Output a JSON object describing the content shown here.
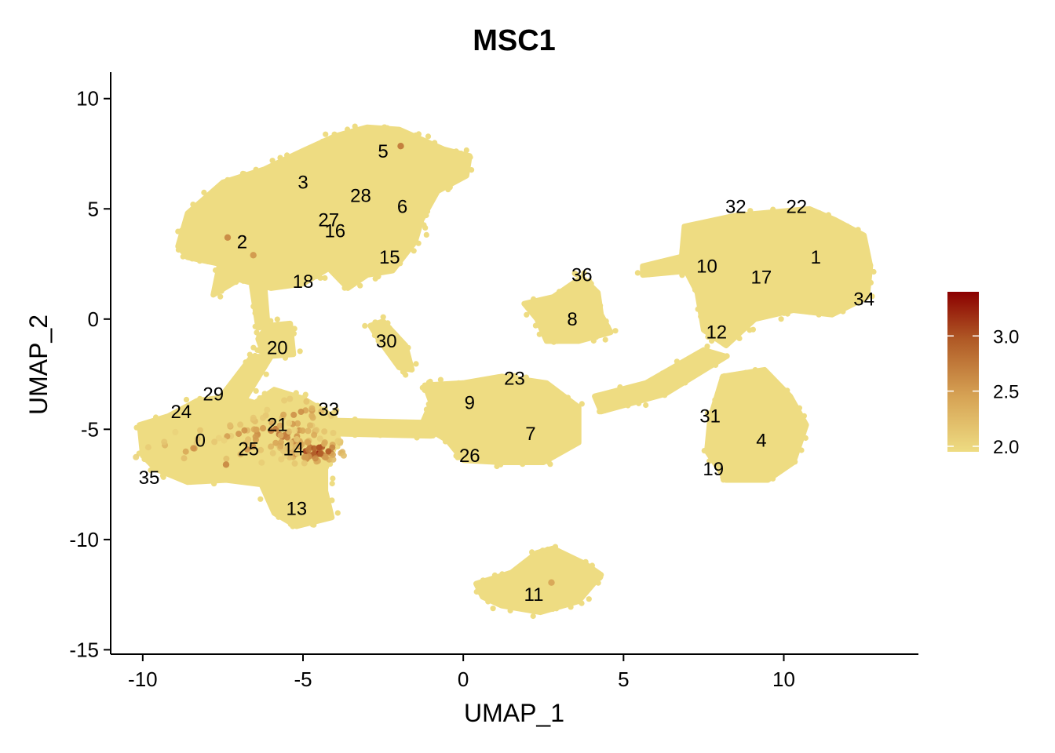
{
  "chart_data": {
    "type": "scatter",
    "title": "MSC1",
    "xlabel": "UMAP_1",
    "ylabel": "UMAP_2",
    "xlim": [
      -11,
      14.2
    ],
    "ylim": [
      -15.2,
      11.2
    ],
    "x_ticks": [
      -10,
      -5,
      0,
      5,
      10
    ],
    "x_tick_labels": [
      "-10",
      "-5",
      "0",
      "5",
      "10"
    ],
    "y_ticks": [
      10,
      5,
      0,
      -5,
      -10,
      -15
    ],
    "y_tick_labels": [
      "10",
      "5",
      "0",
      "-5",
      "-10",
      "-15"
    ],
    "grid": false,
    "legend_placement": "right",
    "colorbar": {
      "min": 1.95,
      "max": 3.4,
      "ticks": [
        3.0,
        2.5,
        2.0
      ],
      "tick_labels": [
        "3.0",
        "2.5",
        "2.0"
      ],
      "low_color": "#eedc82",
      "high_color": "#8b0000"
    },
    "point_base_color": "#eedc82",
    "regions": [
      {
        "name": "top-left",
        "polygon": [
          [
            -8.9,
            3.3
          ],
          [
            -8.6,
            4.8
          ],
          [
            -7.5,
            6.2
          ],
          [
            -6.2,
            6.8
          ],
          [
            -5.2,
            7.5
          ],
          [
            -4,
            8.3
          ],
          [
            -3,
            8.7
          ],
          [
            -2,
            8.6
          ],
          [
            -0.6,
            7.7
          ],
          [
            0.2,
            7.4
          ],
          [
            0.1,
            6.5
          ],
          [
            -0.8,
            5.8
          ],
          [
            -1.3,
            4.5
          ],
          [
            -1.5,
            3.5
          ],
          [
            -2.2,
            2.2
          ],
          [
            -3,
            2.0
          ],
          [
            -3.6,
            1.4
          ],
          [
            -4.2,
            2.3
          ],
          [
            -5,
            1.6
          ],
          [
            -6,
            1.4
          ],
          [
            -7,
            1.8
          ],
          [
            -7.8,
            1.1
          ],
          [
            -7.6,
            2.5
          ],
          [
            -8.6,
            2.8
          ]
        ]
      },
      {
        "name": "top-right",
        "polygon": [
          [
            6.9,
            4.2
          ],
          [
            8.5,
            4.7
          ],
          [
            10.8,
            5.0
          ],
          [
            11.6,
            4.5
          ],
          [
            12.5,
            3.8
          ],
          [
            12.7,
            2.4
          ],
          [
            12.6,
            1.0
          ],
          [
            11.5,
            0.2
          ],
          [
            10.3,
            0.4
          ],
          [
            9.1,
            0.0
          ],
          [
            8.2,
            -1.2
          ],
          [
            7.5,
            -0.5
          ],
          [
            7.3,
            1.2
          ],
          [
            6.8,
            2.6
          ]
        ]
      },
      {
        "name": "right-lower",
        "polygon": [
          [
            8.1,
            -2.6
          ],
          [
            9.4,
            -2.3
          ],
          [
            10.2,
            -3.5
          ],
          [
            10.7,
            -4.8
          ],
          [
            10.3,
            -6.5
          ],
          [
            9.5,
            -7.3
          ],
          [
            8.2,
            -7.3
          ],
          [
            7.6,
            -6.0
          ],
          [
            7.7,
            -4.5
          ]
        ]
      },
      {
        "name": "cluster-8",
        "polygon": [
          [
            1.9,
            0.7
          ],
          [
            2.8,
            1.0
          ],
          [
            3.7,
            1.9
          ],
          [
            4.2,
            1.2
          ],
          [
            4.3,
            0.2
          ],
          [
            4.6,
            -0.6
          ],
          [
            3.6,
            -1.0
          ],
          [
            2.6,
            -1.0
          ],
          [
            2.3,
            0.0
          ]
        ]
      },
      {
        "name": "center",
        "polygon": [
          [
            -1.2,
            -3.0
          ],
          [
            0,
            -2.9
          ],
          [
            1.2,
            -2.6
          ],
          [
            2.6,
            -2.9
          ],
          [
            3.6,
            -4.0
          ],
          [
            3.6,
            -5.6
          ],
          [
            2.5,
            -6.5
          ],
          [
            1.2,
            -6.5
          ],
          [
            0,
            -6.4
          ],
          [
            -0.5,
            -5.5
          ],
          [
            -1.3,
            -4.8
          ],
          [
            -1.0,
            -3.8
          ]
        ]
      },
      {
        "name": "cluster-11",
        "polygon": [
          [
            0.4,
            -12.0
          ],
          [
            1.5,
            -11.5
          ],
          [
            2.3,
            -10.6
          ],
          [
            2.8,
            -10.4
          ],
          [
            3.8,
            -11.1
          ],
          [
            4.3,
            -11.6
          ],
          [
            3.6,
            -12.8
          ],
          [
            2.4,
            -13.3
          ],
          [
            1.2,
            -13.0
          ],
          [
            0.6,
            -12.6
          ]
        ]
      },
      {
        "name": "bottom-left",
        "polygon": [
          [
            -10.1,
            -4.8
          ],
          [
            -9.2,
            -4.4
          ],
          [
            -8.3,
            -3.7
          ],
          [
            -7.2,
            -3.5
          ],
          [
            -6.5,
            -3.8
          ],
          [
            -5.9,
            -3.2
          ],
          [
            -5.0,
            -3.6
          ],
          [
            -4.2,
            -4.3
          ],
          [
            -3.9,
            -5.4
          ],
          [
            -4.3,
            -6.8
          ],
          [
            -4.3,
            -7.8
          ],
          [
            -4.1,
            -9.0
          ],
          [
            -5.2,
            -9.4
          ],
          [
            -5.9,
            -8.8
          ],
          [
            -6.3,
            -7.5
          ],
          [
            -7.4,
            -7.3
          ],
          [
            -8.6,
            -7.4
          ],
          [
            -9.6,
            -6.8
          ],
          [
            -10.0,
            -6.2
          ]
        ]
      },
      {
        "name": "cluster-20",
        "polygon": [
          [
            -6.1,
            -0.3
          ],
          [
            -5.4,
            -0.2
          ],
          [
            -5.3,
            -1.6
          ],
          [
            -6.2,
            -1.7
          ],
          [
            -6.4,
            -0.9
          ]
        ]
      },
      {
        "name": "bridge-top-left",
        "polygon": [
          [
            -6.6,
            1.5
          ],
          [
            -6.2,
            1.5
          ],
          [
            -6.1,
            -0.3
          ],
          [
            -6.4,
            -0.4
          ]
        ]
      },
      {
        "name": "bridge-left",
        "polygon": [
          [
            -6.6,
            -1.7
          ],
          [
            -6.0,
            -1.7
          ],
          [
            -6.8,
            -3.6
          ],
          [
            -7.6,
            -3.6
          ]
        ]
      },
      {
        "name": "bridge-center",
        "polygon": [
          [
            -4.0,
            -4.6
          ],
          [
            -1.0,
            -4.7
          ],
          [
            -1.0,
            -5.3
          ],
          [
            -4.0,
            -5.2
          ]
        ]
      },
      {
        "name": "bridge-right-1",
        "polygon": [
          [
            4.1,
            -3.5
          ],
          [
            5.7,
            -2.9
          ],
          [
            7.5,
            -1.4
          ],
          [
            8.2,
            -1.7
          ],
          [
            6.3,
            -3.4
          ],
          [
            4.3,
            -4.2
          ]
        ]
      },
      {
        "name": "bridge-right-2",
        "polygon": [
          [
            5.6,
            2.4
          ],
          [
            7.0,
            2.9
          ],
          [
            7.1,
            2.2
          ],
          [
            5.6,
            2.0
          ]
        ]
      },
      {
        "name": "cluster-30",
        "polygon": [
          [
            -2.9,
            -0.3
          ],
          [
            -2.5,
            -0.1
          ],
          [
            -1.8,
            -1.2
          ],
          [
            -1.6,
            -2.3
          ],
          [
            -2.0,
            -2.2
          ],
          [
            -2.6,
            -1.0
          ]
        ]
      }
    ],
    "expression_hotspots": [
      {
        "x": -4.6,
        "y": -6.0,
        "spread": 0.5,
        "count": 70,
        "max_value": 3.4
      },
      {
        "x": -5.7,
        "y": -5.2,
        "spread": 0.8,
        "count": 55,
        "max_value": 3.0
      },
      {
        "x": -6.7,
        "y": -5.5,
        "spread": 1.0,
        "count": 25,
        "max_value": 2.8
      },
      {
        "x": -8.6,
        "y": -5.9,
        "spread": 0.7,
        "count": 12,
        "max_value": 2.6
      },
      {
        "x": -5.2,
        "y": -4.2,
        "spread": 0.6,
        "count": 14,
        "max_value": 2.7
      }
    ],
    "isolated_high_points": [
      {
        "x": -1.95,
        "y": 7.85,
        "value": 2.7
      },
      {
        "x": -7.35,
        "y": 3.7,
        "value": 2.6
      },
      {
        "x": -6.55,
        "y": 2.9,
        "value": 2.5
      },
      {
        "x": 2.75,
        "y": -11.95,
        "value": 2.4
      },
      {
        "x": -7.4,
        "y": -6.6,
        "value": 2.6
      }
    ],
    "cluster_labels": [
      {
        "label": "0",
        "x": -8.2,
        "y": -5.5
      },
      {
        "label": "1",
        "x": 11.0,
        "y": 2.8
      },
      {
        "label": "2",
        "x": -6.9,
        "y": 3.5
      },
      {
        "label": "3",
        "x": -5.0,
        "y": 6.2
      },
      {
        "label": "4",
        "x": 9.3,
        "y": -5.5
      },
      {
        "label": "5",
        "x": -2.5,
        "y": 7.6
      },
      {
        "label": "6",
        "x": -1.9,
        "y": 5.1
      },
      {
        "label": "7",
        "x": 2.1,
        "y": -5.2
      },
      {
        "label": "8",
        "x": 3.4,
        "y": 0.0
      },
      {
        "label": "9",
        "x": 0.2,
        "y": -3.8
      },
      {
        "label": "10",
        "x": 7.6,
        "y": 2.4
      },
      {
        "label": "11",
        "x": 2.2,
        "y": -12.5
      },
      {
        "label": "12",
        "x": 7.9,
        "y": -0.6
      },
      {
        "label": "13",
        "x": -5.2,
        "y": -8.6
      },
      {
        "label": "14",
        "x": -5.3,
        "y": -5.9
      },
      {
        "label": "15",
        "x": -2.3,
        "y": 2.8
      },
      {
        "label": "16",
        "x": -4.0,
        "y": 4.0
      },
      {
        "label": "17",
        "x": 9.3,
        "y": 1.9
      },
      {
        "label": "18",
        "x": -5.0,
        "y": 1.7
      },
      {
        "label": "19",
        "x": 7.8,
        "y": -6.8
      },
      {
        "label": "20",
        "x": -5.8,
        "y": -1.3
      },
      {
        "label": "21",
        "x": -5.8,
        "y": -4.8
      },
      {
        "label": "22",
        "x": 10.4,
        "y": 5.1
      },
      {
        "label": "23",
        "x": 1.6,
        "y": -2.7
      },
      {
        "label": "24",
        "x": -8.8,
        "y": -4.2
      },
      {
        "label": "25",
        "x": -6.7,
        "y": -5.9
      },
      {
        "label": "26",
        "x": 0.2,
        "y": -6.2
      },
      {
        "label": "27",
        "x": -4.2,
        "y": 4.5
      },
      {
        "label": "28",
        "x": -3.2,
        "y": 5.6
      },
      {
        "label": "29",
        "x": -7.8,
        "y": -3.4
      },
      {
        "label": "30",
        "x": -2.4,
        "y": -1.0
      },
      {
        "label": "31",
        "x": 7.7,
        "y": -4.4
      },
      {
        "label": "32",
        "x": 8.5,
        "y": 5.1
      },
      {
        "label": "33",
        "x": -4.2,
        "y": -4.1
      },
      {
        "label": "34",
        "x": 12.5,
        "y": 0.9
      },
      {
        "label": "35",
        "x": -9.8,
        "y": -7.2
      },
      {
        "label": "36",
        "x": 3.7,
        "y": 2.0
      }
    ]
  }
}
